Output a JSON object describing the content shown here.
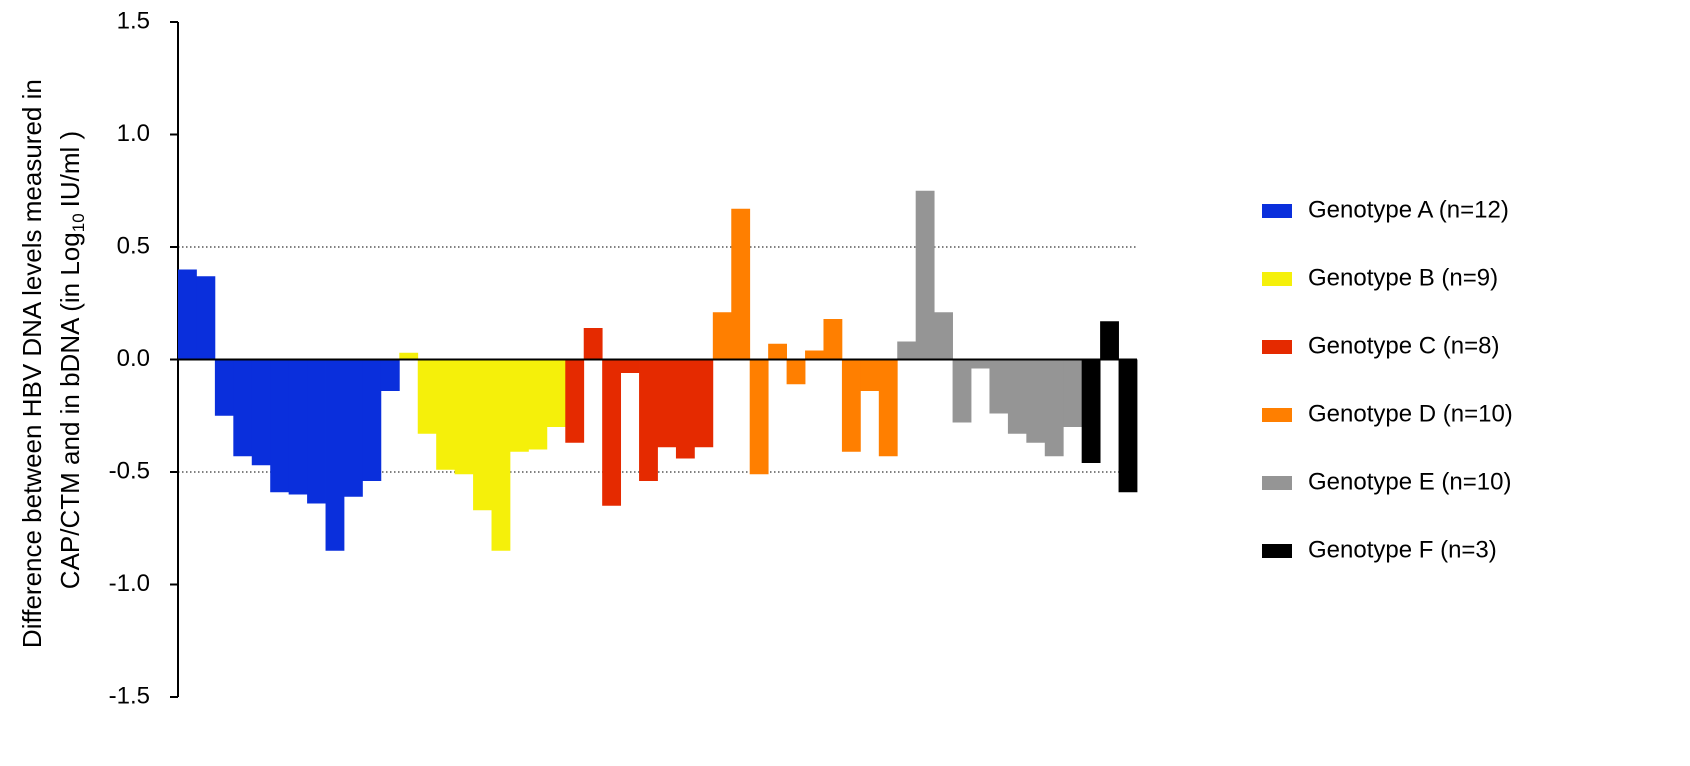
{
  "chart_data": {
    "type": "bar",
    "ylabel": [
      "Difference between HBV DNA levels measured in",
      "CAP/CTM and in bDNA (in Log",
      "10",
      "IU/ml )"
    ],
    "ylim": [
      -1.5,
      1.5
    ],
    "yticks": [
      -1.5,
      {
        "value": -1,
        "label": "-1.0"
      },
      -0.5,
      {
        "value": 0,
        "label": "0.0"
      },
      0.5,
      {
        "value": 1,
        "label": "1.0"
      },
      1.5
    ],
    "reference_lines": [
      -0.5,
      0.5
    ],
    "series": [
      {
        "name": "Genotype A (n=12)",
        "color": "#0a2fdc",
        "values": [
          0.4,
          0.37,
          -0.25,
          -0.43,
          -0.47,
          -0.59,
          -0.6,
          -0.64,
          -0.85,
          -0.61,
          -0.54,
          -0.14
        ]
      },
      {
        "name": "Genotype B (n=9)",
        "color": "#f5f00a",
        "values": [
          0.03,
          -0.33,
          -0.49,
          -0.51,
          -0.67,
          -0.85,
          -0.41,
          -0.4,
          -0.3
        ]
      },
      {
        "name": "Genotype C (n=8)",
        "color": "#e52a00",
        "values": [
          -0.37,
          0.14,
          -0.65,
          -0.06,
          -0.54,
          -0.39,
          -0.44,
          -0.39
        ]
      },
      {
        "name": "Genotype D (n=10)",
        "color": "#ff7f00",
        "values": [
          0.21,
          0.67,
          -0.51,
          0.07,
          -0.11,
          0.04,
          0.18,
          -0.41,
          -0.14,
          -0.43
        ]
      },
      {
        "name": "Genotype E (n=10)",
        "color": "#959595",
        "values": [
          0.08,
          0.75,
          0.21,
          -0.28,
          -0.04,
          -0.24,
          -0.33,
          -0.37,
          -0.43,
          -0.3
        ]
      },
      {
        "name": "Genotype F (n=3)",
        "color": "#000000",
        "values": [
          -0.46,
          0.17,
          -0.59
        ]
      }
    ]
  }
}
